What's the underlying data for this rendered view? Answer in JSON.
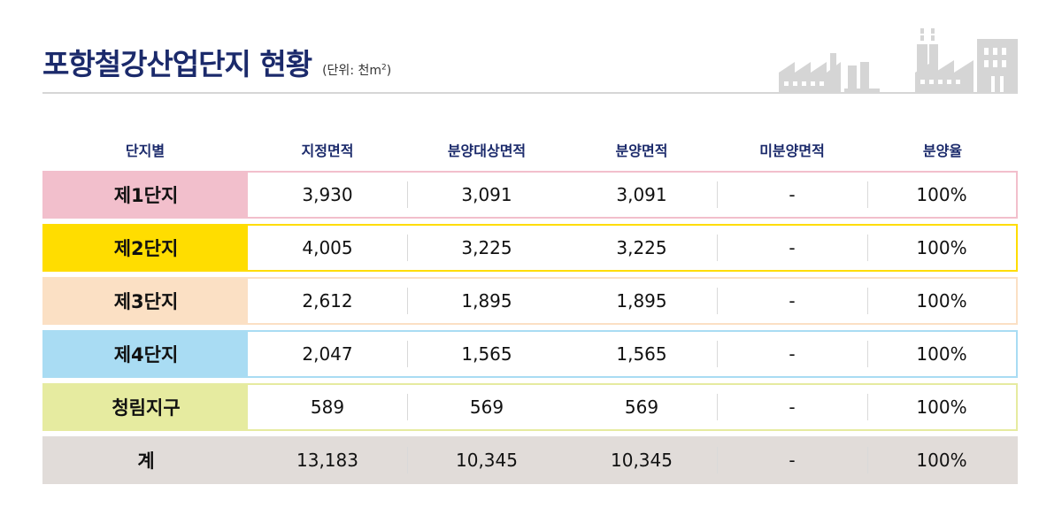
{
  "header": {
    "title": "포항철강산업단지 현황",
    "unit_prefix": "(단위: 천m",
    "unit_sup": "2",
    "unit_suffix": ")"
  },
  "chart_data": {
    "type": "table",
    "columns": [
      "단지별",
      "지정면적",
      "분양대상면적",
      "분양면적",
      "미분양면적",
      "분양율"
    ],
    "rows": [
      {
        "name": "제1단지",
        "designated": "3,930",
        "target": "3,091",
        "sold": "3,091",
        "unsold": "-",
        "rate": "100%",
        "color": "#f2bfcc",
        "border": "#f2bfcc"
      },
      {
        "name": "제2단지",
        "designated": "4,005",
        "target": "3,225",
        "sold": "3,225",
        "unsold": "-",
        "rate": "100%",
        "color": "#ffdd00",
        "border": "#ffdd00"
      },
      {
        "name": "제3단지",
        "designated": "2,612",
        "target": "1,895",
        "sold": "1,895",
        "unsold": "-",
        "rate": "100%",
        "color": "#fbe0c4",
        "border": "#fbe0c4"
      },
      {
        "name": "제4단지",
        "designated": "2,047",
        "target": "1,565",
        "sold": "1,565",
        "unsold": "-",
        "rate": "100%",
        "color": "#a9dcf3",
        "border": "#a9dcf3"
      },
      {
        "name": "청림지구",
        "designated": "589",
        "target": "569",
        "sold": "569",
        "unsold": "-",
        "rate": "100%",
        "color": "#e6eba0",
        "border": "#e6eba0"
      },
      {
        "name": "계",
        "designated": "13,183",
        "target": "10,345",
        "sold": "10,345",
        "unsold": "-",
        "rate": "100%",
        "color": "#e1dcd9",
        "border": "#e1dcd9"
      }
    ]
  }
}
